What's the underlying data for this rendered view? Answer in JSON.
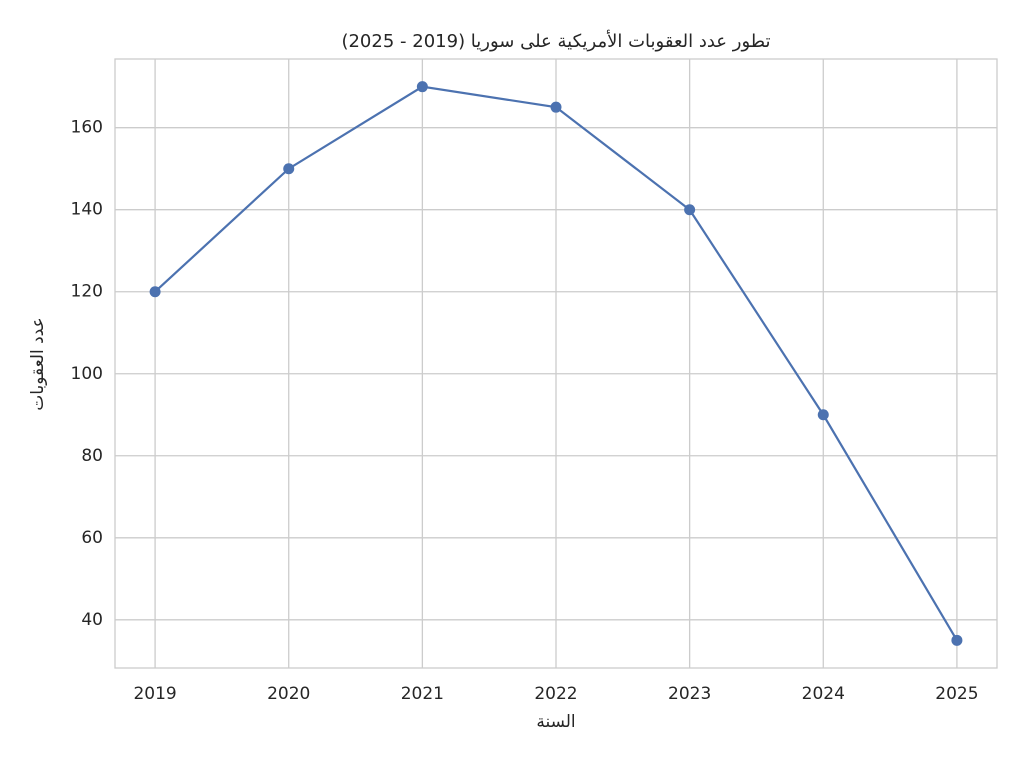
{
  "chart_data": {
    "type": "line",
    "title": "تطور عدد العقوبات الأمريكية على سوريا (2019 - 2025)",
    "x_label": "السنة",
    "y_label": "عدد العقوبات",
    "x": [
      2019,
      2020,
      2021,
      2022,
      2023,
      2024,
      2025
    ],
    "series": [
      {
        "color": "#4c72b0",
        "values": [
          120,
          150,
          170,
          165,
          140,
          90,
          35
        ]
      }
    ],
    "xlim": [
      2018.7,
      2025.3
    ],
    "xticks": [
      2019,
      2020,
      2021,
      2022,
      2023,
      2024,
      2025
    ],
    "ylim": [
      28.25,
      176.75
    ],
    "yticks": [
      40,
      60,
      80,
      100,
      120,
      140,
      160
    ],
    "grid": true,
    "markers": true
  }
}
